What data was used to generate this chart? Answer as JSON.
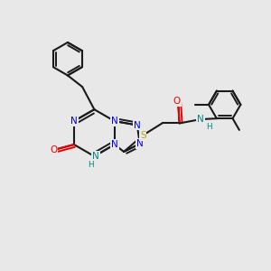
{
  "bg_color": "#e8e8e8",
  "bond_color": "#1a1a1a",
  "n_color": "#0000ee",
  "o_color": "#ee0000",
  "s_color": "#bbaa00",
  "nh_color": "#008888",
  "lw": 1.5,
  "lw_double": 1.4,
  "fs": 7.5,
  "fig_w": 3.0,
  "fig_h": 3.0,
  "dpi": 100,
  "xlim": [
    0,
    10
  ],
  "ylim": [
    0,
    10
  ]
}
